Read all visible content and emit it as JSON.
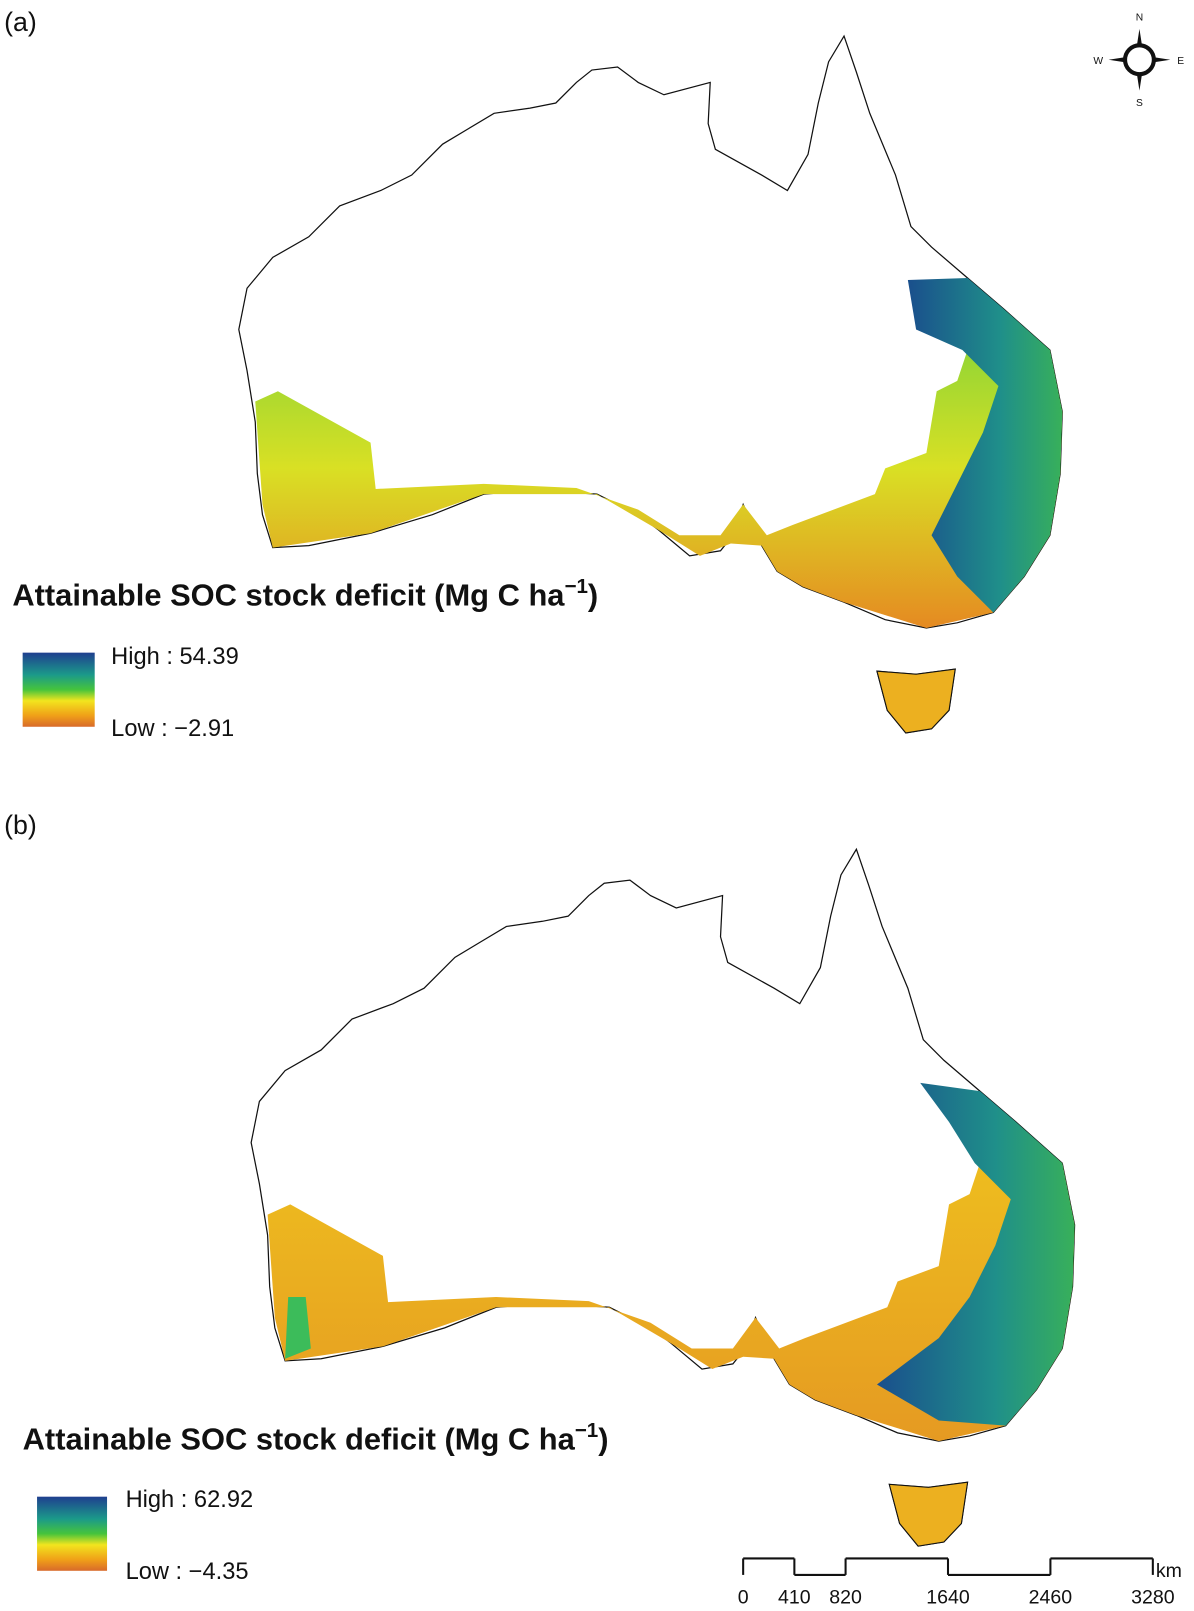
{
  "panels": [
    {
      "label": "(a)",
      "title": {
        "text": "Attainable SOC stock deficit (Mg C ha",
        "superscript": "−1",
        "close": ")"
      },
      "legend": {
        "high": "High : 54.39",
        "low": "Low : −2.91"
      }
    },
    {
      "label": "(b)",
      "title": {
        "text": "Attainable SOC stock deficit (Mg C ha",
        "superscript": "−1",
        "close": ")"
      },
      "legend": {
        "high": "High : 62.92",
        "low": "Low : −4.35"
      }
    }
  ],
  "compass": {
    "n": "N",
    "e": "E",
    "s": "S",
    "w": "W"
  },
  "scale_bar": {
    "ticks": [
      0,
      410,
      820,
      1640,
      2460,
      3280
    ],
    "unit": "km"
  }
}
